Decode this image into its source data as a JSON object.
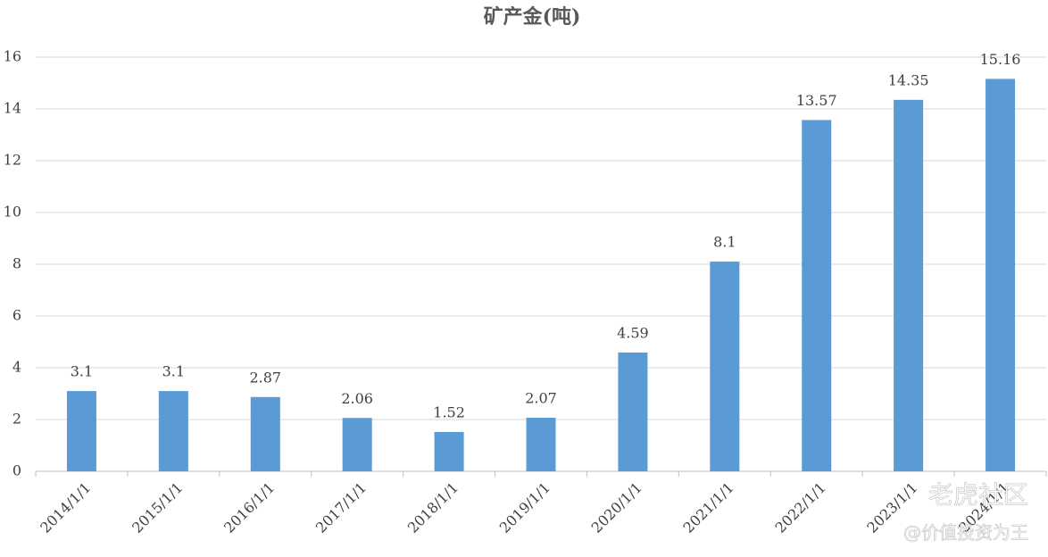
{
  "chart_data": {
    "type": "bar",
    "title": "矿产金(吨)",
    "categories": [
      "2014/1/1",
      "2015/1/1",
      "2016/1/1",
      "2017/1/1",
      "2018/1/1",
      "2019/1/1",
      "2020/1/1",
      "2021/1/1",
      "2022/1/1",
      "2023/1/1",
      "2024/1/1"
    ],
    "values": [
      3.1,
      3.1,
      2.87,
      2.06,
      1.52,
      2.07,
      4.59,
      8.1,
      13.57,
      14.35,
      15.16
    ],
    "color": "#5b9bd5",
    "ylim": [
      0,
      16
    ],
    "yticks": [
      0,
      2,
      4,
      6,
      8,
      10,
      12,
      14,
      16
    ],
    "grid": true,
    "watermark": [
      "老虎社区",
      "@价值投资为王"
    ]
  }
}
